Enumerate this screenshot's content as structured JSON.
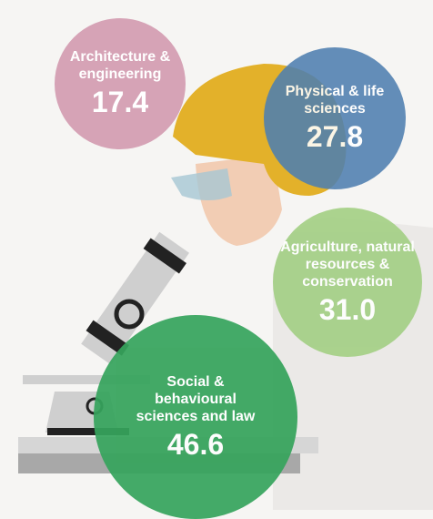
{
  "chart_data": {
    "type": "bubble",
    "categories": [
      "Architecture & engineering",
      "Physical & life sciences",
      "Agriculture, natural resources & conservation",
      "Social & behavioural sciences and law"
    ],
    "values": [
      17.4,
      27.8,
      31.0,
      46.6
    ],
    "value_labels": [
      "17.4",
      "27.8",
      "31.0",
      "46.6"
    ],
    "colors": [
      "#d6a3b6",
      "#4f7fb0",
      "#a4cf86",
      "#36a45c"
    ]
  }
}
